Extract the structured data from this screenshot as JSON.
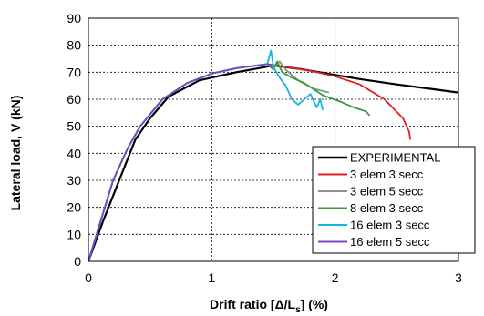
{
  "chart_data": {
    "type": "line",
    "xlabel_parts": [
      "Drift ratio [Δ/L",
      "s",
      "] (%)"
    ],
    "ylabel": "Lateral load, V (kN)",
    "xlim": [
      0,
      3
    ],
    "ylim": [
      0,
      90
    ],
    "x_ticks": [
      "0",
      "1",
      "2",
      "3"
    ],
    "y_ticks": [
      "0",
      "10",
      "20",
      "30",
      "40",
      "50",
      "60",
      "70",
      "80",
      "90"
    ],
    "grid": "dashed",
    "legend_position": "bottom-right",
    "series": [
      {
        "name": "EXPERIMENTAL",
        "color": "#000000",
        "points": [
          [
            0,
            0
          ],
          [
            0.12,
            15
          ],
          [
            0.25,
            30
          ],
          [
            0.38,
            45
          ],
          [
            0.5,
            53
          ],
          [
            0.65,
            61
          ],
          [
            0.9,
            67
          ],
          [
            1.2,
            70
          ],
          [
            1.5,
            72.5
          ],
          [
            1.75,
            71
          ],
          [
            2.0,
            69
          ],
          [
            2.2,
            67.5
          ],
          [
            2.5,
            65.5
          ],
          [
            2.75,
            64
          ],
          [
            3.0,
            62.5
          ]
        ]
      },
      {
        "name": "3 elem 3 secc",
        "color": "#e02020",
        "points": [
          [
            0,
            0
          ],
          [
            0.1,
            15
          ],
          [
            0.2,
            30
          ],
          [
            0.32,
            42
          ],
          [
            0.42,
            50
          ],
          [
            0.6,
            60
          ],
          [
            0.8,
            66
          ],
          [
            1.0,
            69.5
          ],
          [
            1.2,
            71.5
          ],
          [
            1.45,
            73
          ],
          [
            1.6,
            72
          ],
          [
            1.8,
            70.5
          ],
          [
            2.0,
            68.5
          ],
          [
            2.2,
            65.5
          ],
          [
            2.4,
            60
          ],
          [
            2.55,
            53
          ],
          [
            2.6,
            48
          ],
          [
            2.61,
            45
          ]
        ]
      },
      {
        "name": "3 elem 5 secc",
        "color": "#909090",
        "points": [
          [
            0,
            0
          ],
          [
            0.1,
            15
          ],
          [
            0.2,
            30
          ],
          [
            0.32,
            42
          ],
          [
            0.42,
            50
          ],
          [
            0.6,
            60
          ],
          [
            0.8,
            66
          ],
          [
            1.0,
            69.5
          ],
          [
            1.2,
            71.5
          ],
          [
            1.45,
            73
          ],
          [
            1.52,
            72.5
          ],
          [
            1.55,
            74
          ],
          [
            1.6,
            71
          ],
          [
            1.7,
            67
          ],
          [
            1.82,
            64
          ],
          [
            1.95,
            62.5
          ]
        ]
      },
      {
        "name": "8 elem 3 secc",
        "color": "#3a9a3a",
        "points": [
          [
            0,
            0
          ],
          [
            0.1,
            15
          ],
          [
            0.2,
            30
          ],
          [
            0.32,
            42
          ],
          [
            0.42,
            50
          ],
          [
            0.6,
            60
          ],
          [
            0.8,
            66
          ],
          [
            1.0,
            69.5
          ],
          [
            1.2,
            71.5
          ],
          [
            1.45,
            73
          ],
          [
            1.5,
            71
          ],
          [
            1.53,
            74
          ],
          [
            1.57,
            70
          ],
          [
            1.65,
            68
          ],
          [
            1.75,
            66
          ],
          [
            1.9,
            61.5
          ],
          [
            2.05,
            59
          ],
          [
            2.15,
            57
          ],
          [
            2.25,
            55.5
          ],
          [
            2.28,
            54
          ]
        ]
      },
      {
        "name": "16 elem 3 secc",
        "color": "#18b4e8",
        "points": [
          [
            0,
            0
          ],
          [
            0.1,
            15
          ],
          [
            0.2,
            30
          ],
          [
            0.32,
            42
          ],
          [
            0.42,
            50
          ],
          [
            0.6,
            60
          ],
          [
            0.8,
            66
          ],
          [
            1.0,
            69.5
          ],
          [
            1.2,
            71.5
          ],
          [
            1.45,
            73
          ],
          [
            1.48,
            78
          ],
          [
            1.5,
            72
          ],
          [
            1.55,
            68
          ],
          [
            1.6,
            65
          ],
          [
            1.65,
            60
          ],
          [
            1.7,
            58
          ],
          [
            1.75,
            60
          ],
          [
            1.8,
            62
          ],
          [
            1.85,
            57
          ],
          [
            1.88,
            60
          ],
          [
            1.9,
            56
          ]
        ]
      },
      {
        "name": "16 elem 5 secc",
        "color": "#7b45c8",
        "points": [
          [
            0,
            0
          ],
          [
            0.1,
            15
          ],
          [
            0.2,
            30
          ],
          [
            0.32,
            42
          ],
          [
            0.42,
            50
          ],
          [
            0.6,
            60
          ],
          [
            0.8,
            66
          ],
          [
            1.0,
            69.5
          ],
          [
            1.2,
            71.5
          ],
          [
            1.45,
            73
          ],
          [
            1.5,
            72.5
          ]
        ]
      }
    ]
  }
}
